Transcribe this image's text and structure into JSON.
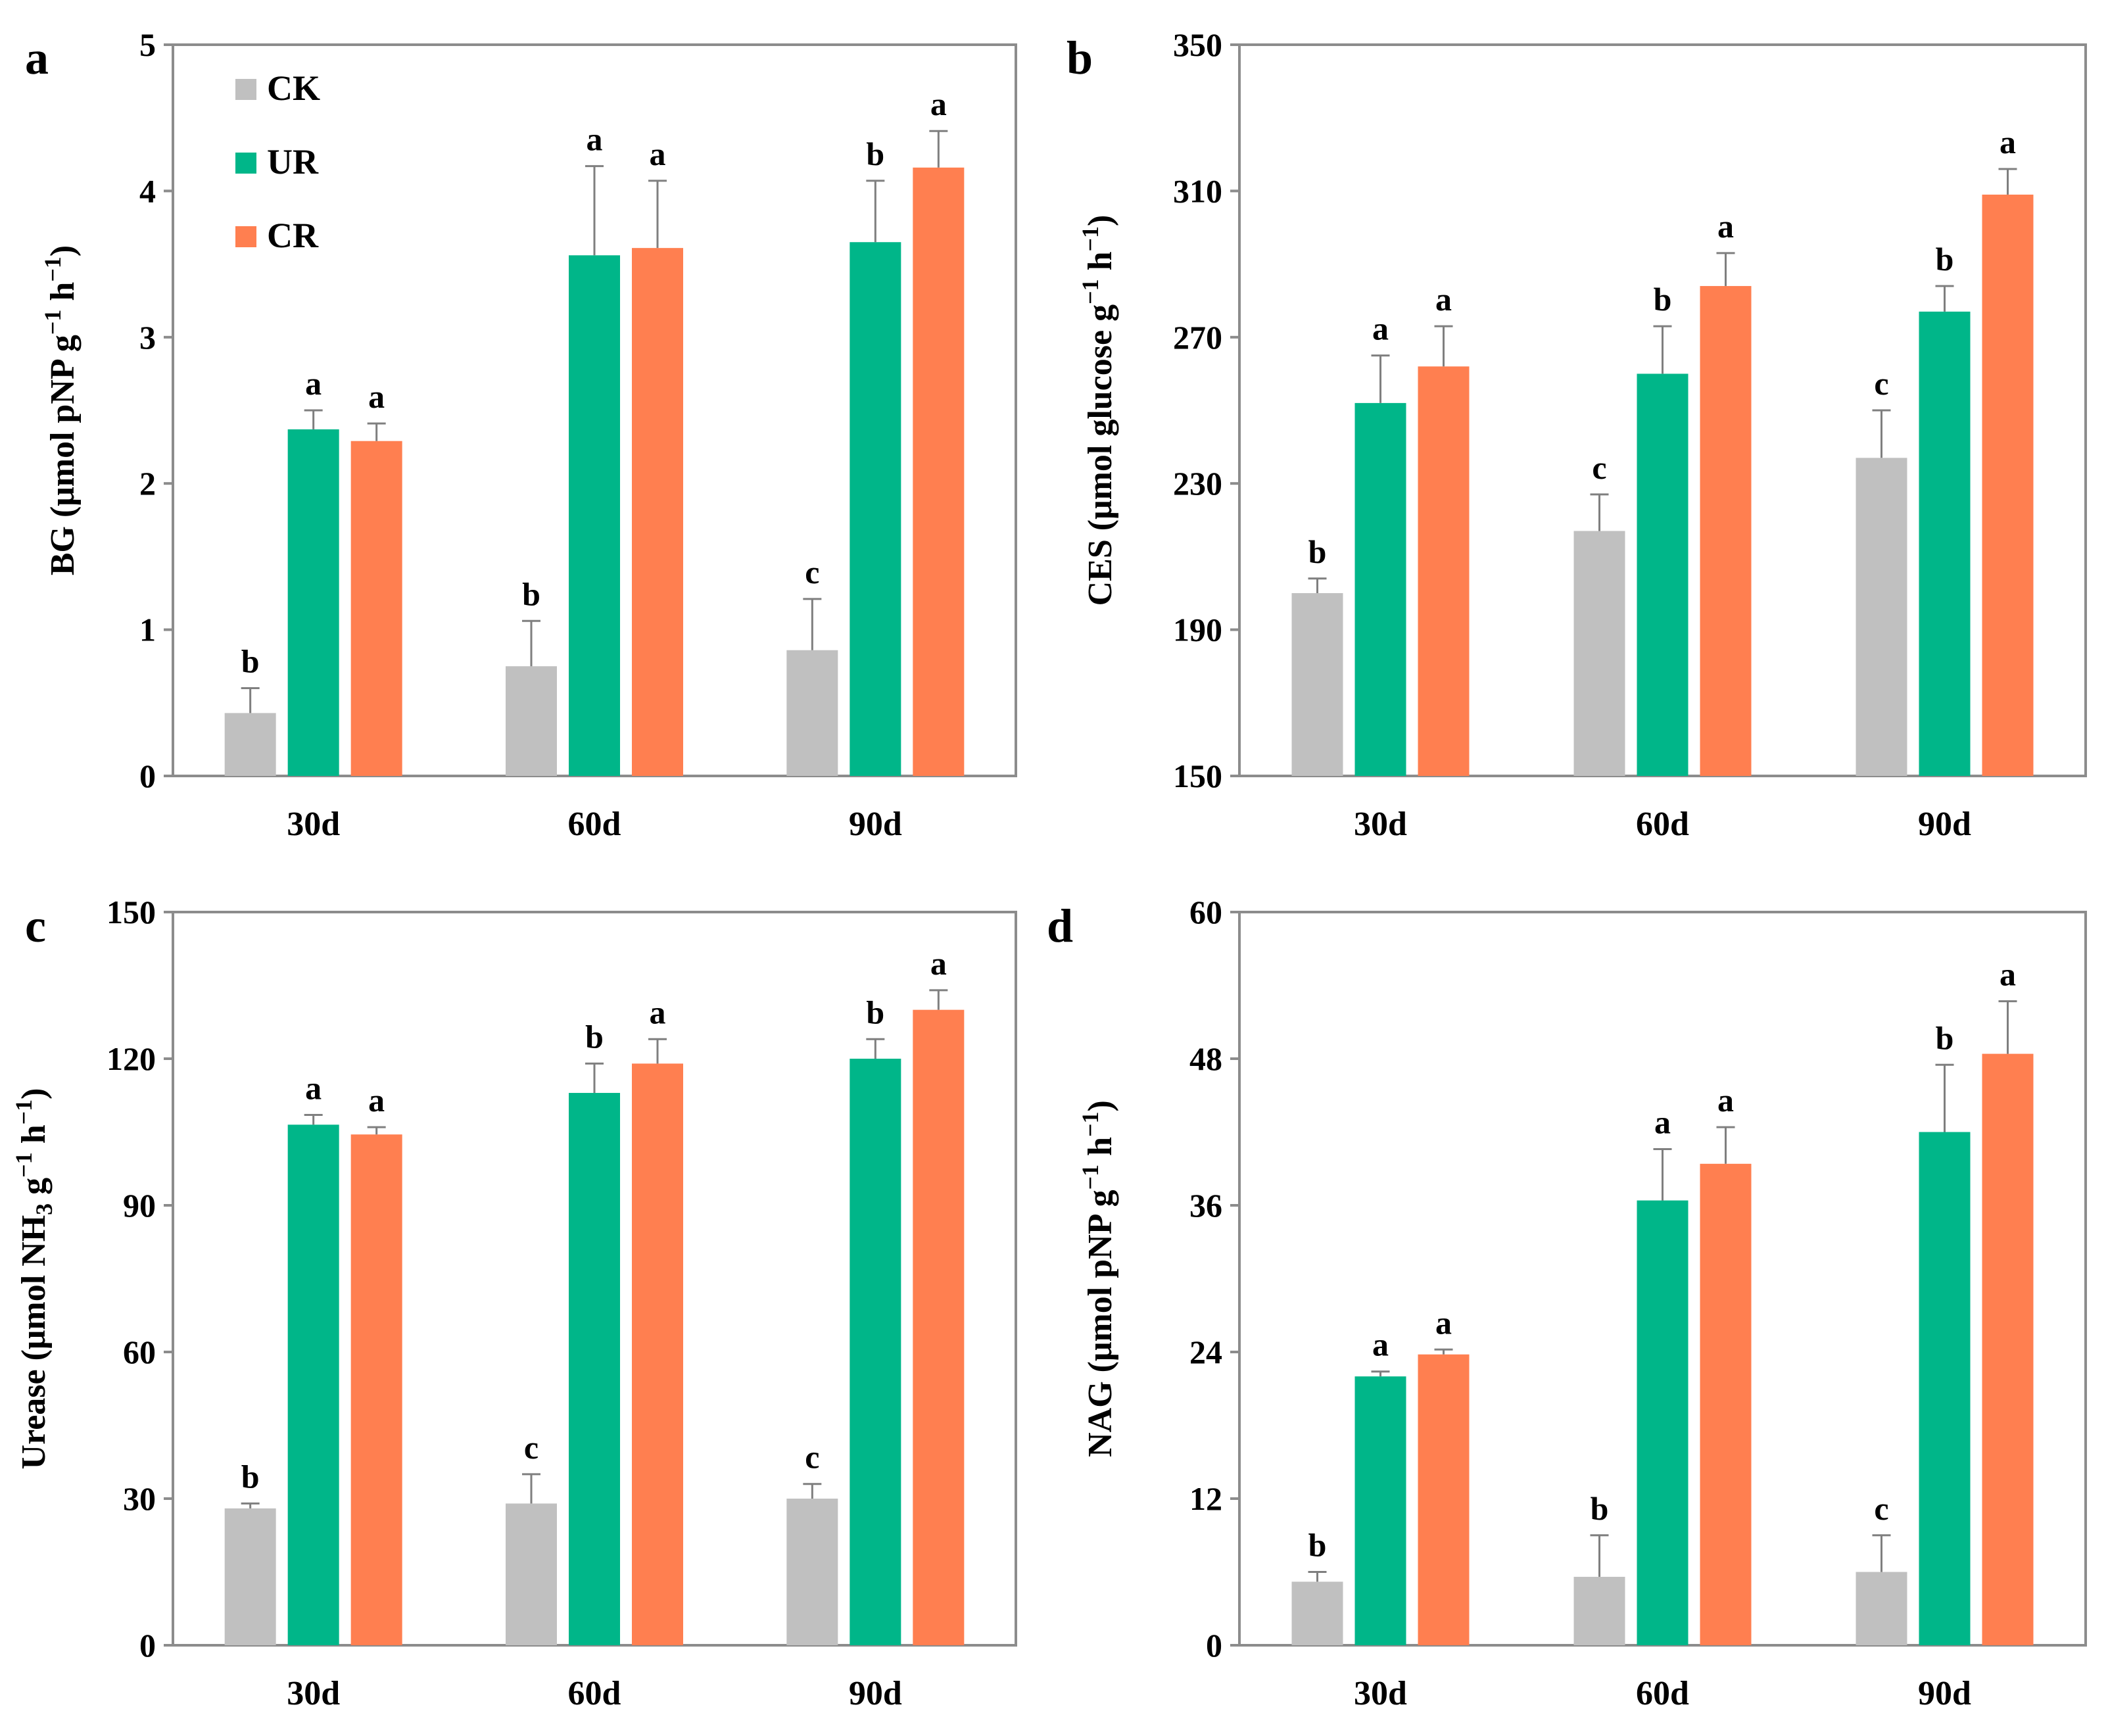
{
  "colors": {
    "CK": "#c0c0c0",
    "UR": "#00b689",
    "CR": "#ff7f50"
  },
  "legend": [
    "CK",
    "UR",
    "CR"
  ],
  "chart_data": [
    {
      "id": "a",
      "type": "bar",
      "panel_label": "a",
      "ylabel_parts": [
        "BG (μmol pNP g",
        "−1",
        " h",
        "−1",
        ")"
      ],
      "categories": [
        "30d",
        "60d",
        "90d"
      ],
      "ylim": [
        0,
        5
      ],
      "yticks": [
        0,
        1,
        2,
        3,
        4,
        5
      ],
      "show_legend": true,
      "series": [
        {
          "name": "CK",
          "values": [
            0.43,
            0.75,
            0.86
          ],
          "errors": [
            0.17,
            0.31,
            0.35
          ],
          "sig": [
            "b",
            "b",
            "c"
          ]
        },
        {
          "name": "UR",
          "values": [
            2.37,
            3.56,
            3.65
          ],
          "errors": [
            0.13,
            0.61,
            0.42
          ],
          "sig": [
            "a",
            "a",
            "b"
          ]
        },
        {
          "name": "CR",
          "values": [
            2.29,
            3.61,
            4.16
          ],
          "errors": [
            0.12,
            0.46,
            0.25
          ],
          "sig": [
            "a",
            "a",
            "a"
          ]
        }
      ]
    },
    {
      "id": "b",
      "type": "bar",
      "panel_label": "b",
      "ylabel_parts": [
        "CES (μmol glucose g",
        "−1",
        " h",
        "−1",
        ")"
      ],
      "categories": [
        "30d",
        "60d",
        "90d"
      ],
      "ylim": [
        150,
        350
      ],
      "yticks": [
        150,
        190,
        230,
        270,
        310,
        350
      ],
      "show_legend": false,
      "series": [
        {
          "name": "CK",
          "values": [
            200,
            217,
            237
          ],
          "errors": [
            4,
            10,
            13
          ],
          "sig": [
            "b",
            "c",
            "c"
          ]
        },
        {
          "name": "UR",
          "values": [
            252,
            260,
            277
          ],
          "errors": [
            13,
            13,
            7
          ],
          "sig": [
            "a",
            "b",
            "b"
          ]
        },
        {
          "name": "CR",
          "values": [
            262,
            284,
            309
          ],
          "errors": [
            11,
            9,
            7
          ],
          "sig": [
            "a",
            "a",
            "a"
          ]
        }
      ]
    },
    {
      "id": "c",
      "type": "bar",
      "panel_label": "c",
      "ylabel_parts": [
        "Urease (μmol NH",
        "3",
        " g",
        "−1",
        "  h",
        "−1",
        ")"
      ],
      "categories": [
        "30d",
        "60d",
        "90d"
      ],
      "ylim": [
        0,
        150
      ],
      "yticks": [
        0,
        30,
        60,
        90,
        120,
        150
      ],
      "show_legend": false,
      "series": [
        {
          "name": "CK",
          "values": [
            28,
            29,
            30
          ],
          "errors": [
            1,
            6,
            3
          ],
          "sig": [
            "b",
            "c",
            "c"
          ]
        },
        {
          "name": "UR",
          "values": [
            106.5,
            113,
            120
          ],
          "errors": [
            2,
            6,
            4
          ],
          "sig": [
            "a",
            "b",
            "b"
          ]
        },
        {
          "name": "CR",
          "values": [
            104.5,
            119,
            130
          ],
          "errors": [
            1.5,
            5,
            4
          ],
          "sig": [
            "a",
            "a",
            "a"
          ]
        }
      ]
    },
    {
      "id": "d",
      "type": "bar",
      "panel_label": "d",
      "ylabel_parts": [
        "NAG (μmol pNP g",
        "−1",
        " h",
        "−1",
        ")"
      ],
      "categories": [
        "30d",
        "60d",
        "90d"
      ],
      "ylim": [
        0,
        60
      ],
      "yticks": [
        0,
        12,
        24,
        36,
        48,
        60
      ],
      "show_legend": false,
      "series": [
        {
          "name": "CK",
          "values": [
            5.2,
            5.6,
            6.0
          ],
          "errors": [
            0.8,
            3.4,
            3.0
          ],
          "sig": [
            "b",
            "b",
            "c"
          ]
        },
        {
          "name": "UR",
          "values": [
            22,
            36.4,
            42
          ],
          "errors": [
            0.4,
            4.2,
            5.5
          ],
          "sig": [
            "a",
            "a",
            "b"
          ]
        },
        {
          "name": "CR",
          "values": [
            23.8,
            39.4,
            48.4
          ],
          "errors": [
            0.4,
            3.0,
            4.3
          ],
          "sig": [
            "a",
            "a",
            "a"
          ]
        }
      ]
    }
  ]
}
